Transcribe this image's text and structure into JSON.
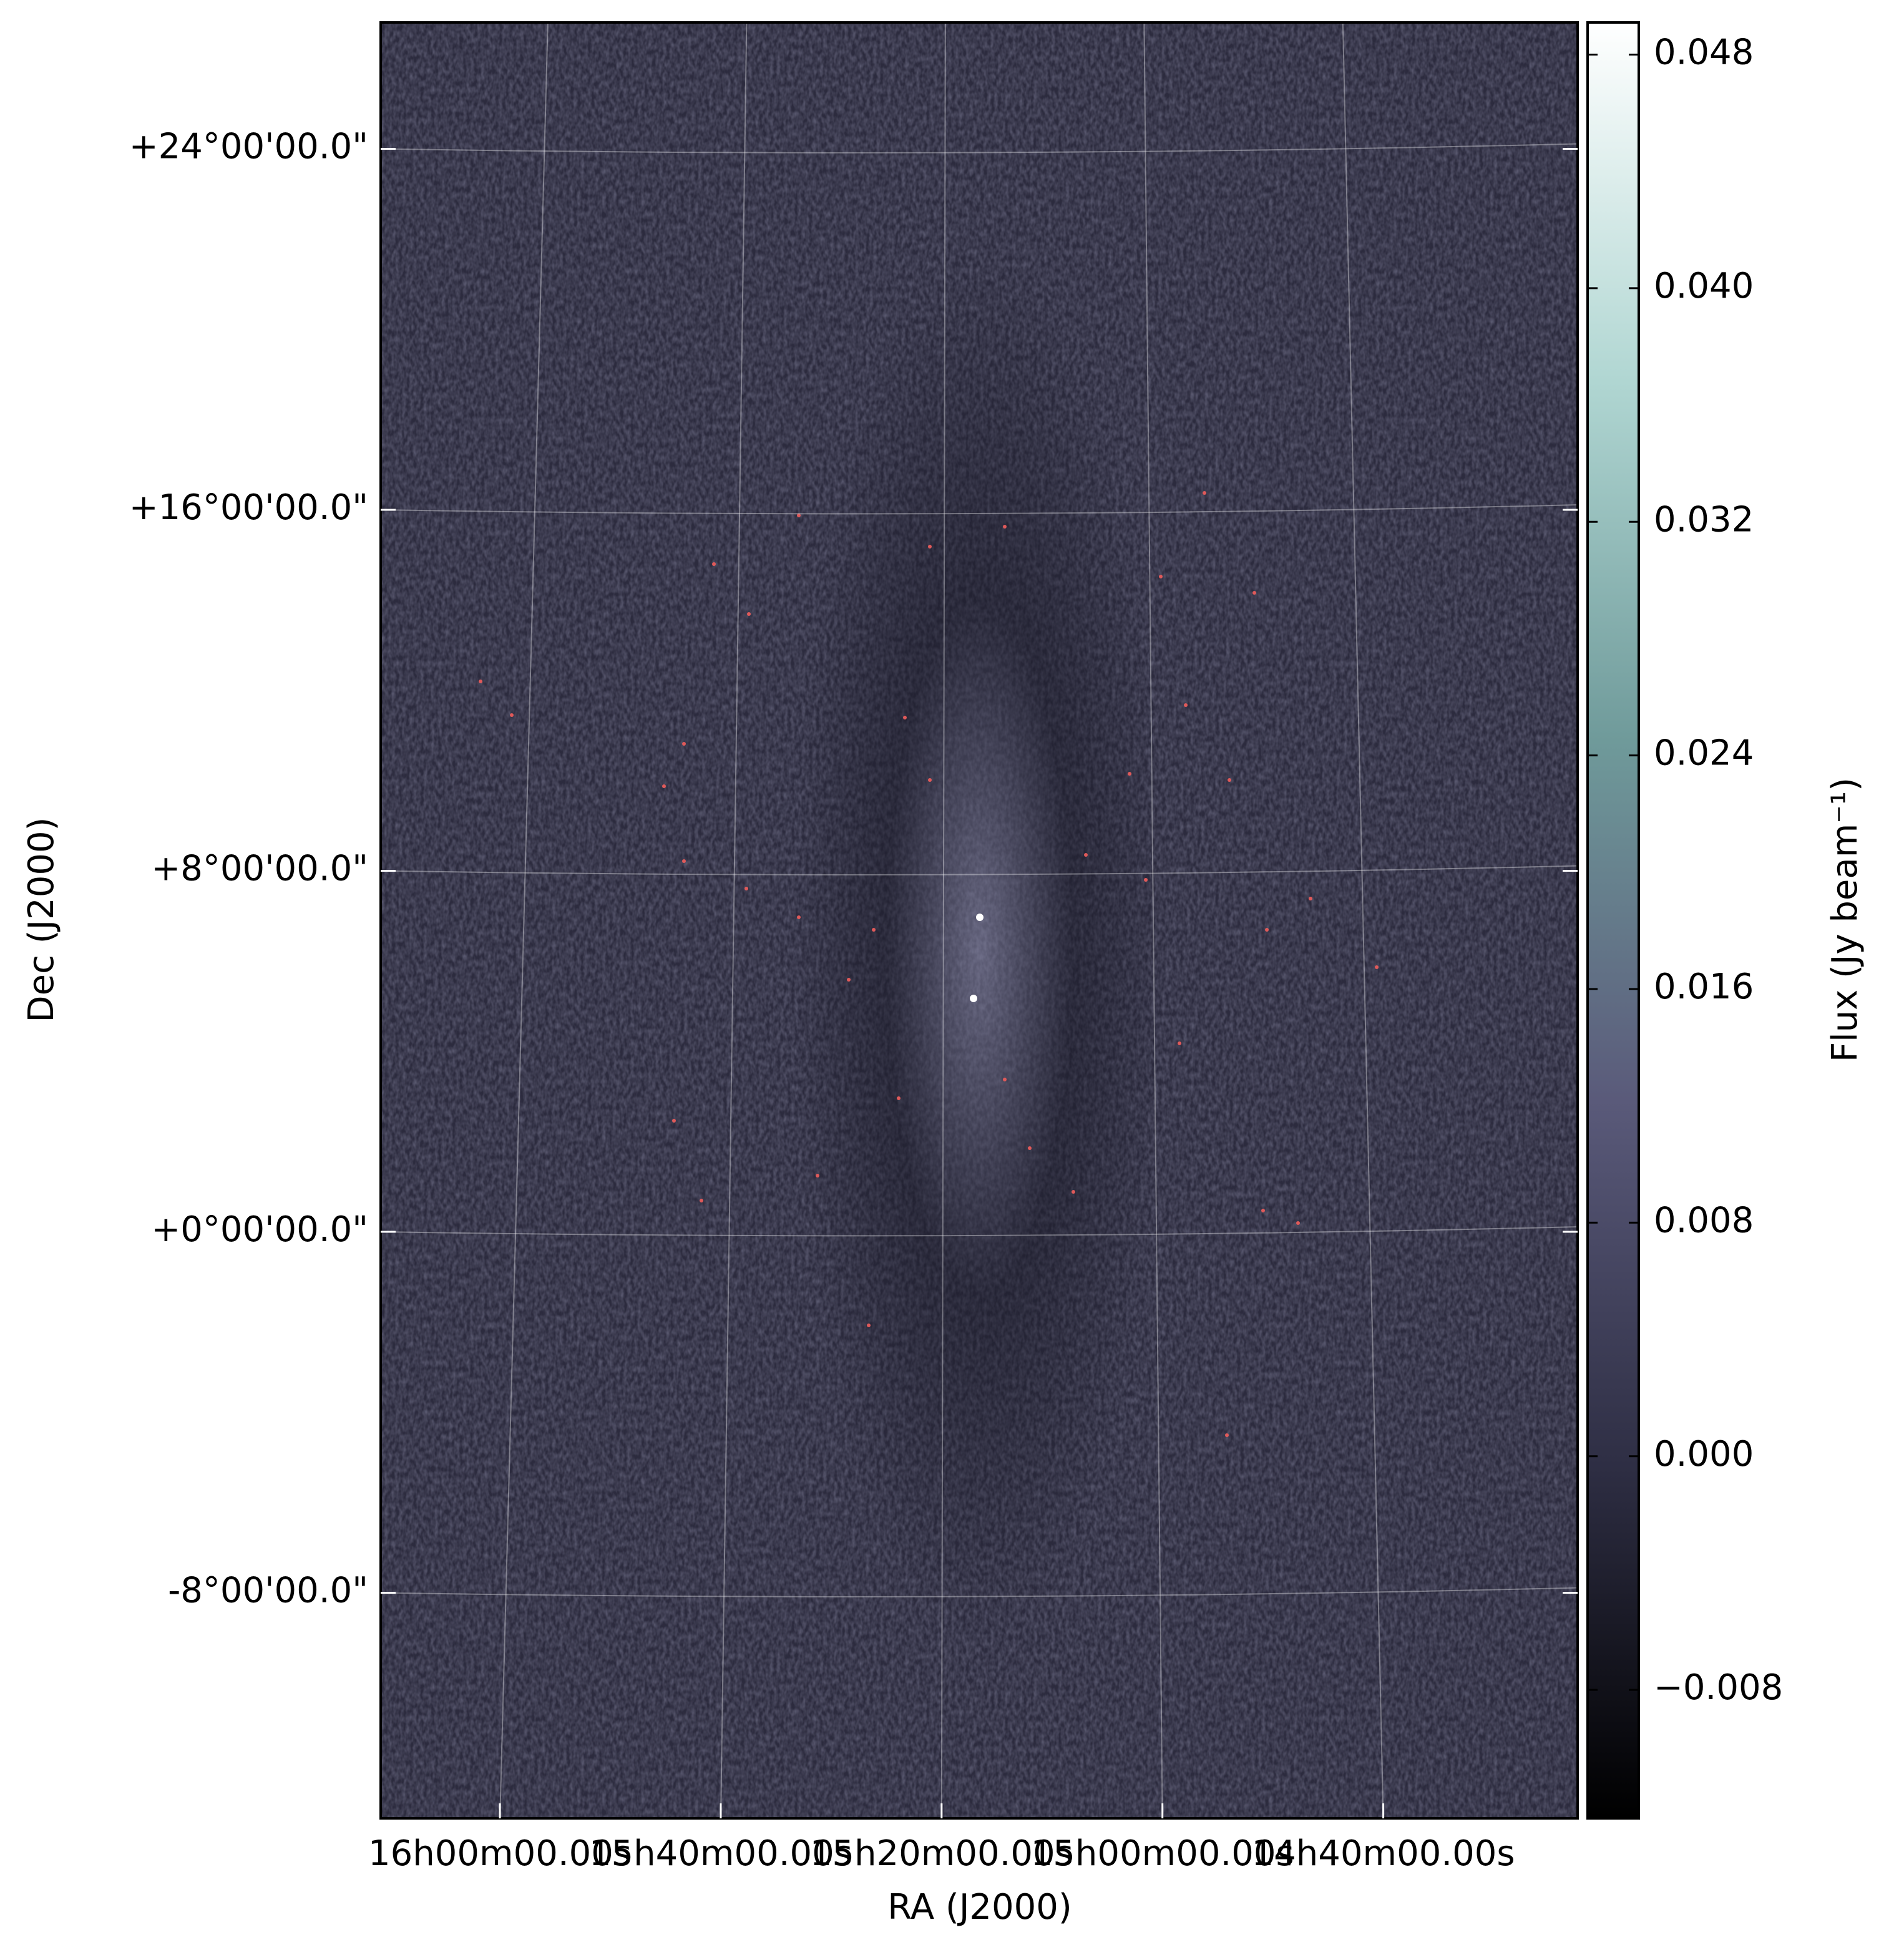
{
  "chart_data": {
    "type": "image",
    "xlabel": "RA (J2000)",
    "ylabel": "Dec (J2000)",
    "xlim": [
      242.7,
      215.6
    ],
    "xticks": [
      {
        "value": 240,
        "label": "16h00m00.00s"
      },
      {
        "value": 235,
        "label": "15h40m00.00s"
      },
      {
        "value": 230,
        "label": "15h20m00.00s"
      },
      {
        "value": 225,
        "label": "15h00m00.00s"
      },
      {
        "value": 220,
        "label": "14h40m00.00s"
      }
    ],
    "ylim": [
      -13.0,
      26.8
    ],
    "yticks": [
      {
        "value": 24,
        "label": "+24°00'00.0\""
      },
      {
        "value": 16,
        "label": "+16°00'00.0\""
      },
      {
        "value": 8,
        "label": "+8°00'00.0\""
      },
      {
        "value": 0,
        "label": "+0°00'00.0\""
      },
      {
        "value": -8,
        "label": "-8°00'00.0\""
      }
    ],
    "grid": true,
    "colorbar": {
      "label": "Flux (Jy beam⁻¹)",
      "clim": [
        -0.0124,
        0.0491
      ],
      "ticks": [
        {
          "value": -0.008,
          "label": "−0.008"
        },
        {
          "value": 0,
          "label": "0.000"
        },
        0.008,
        0.016,
        0.024,
        0.032,
        {
          "value": 0.04,
          "label": "0.040"
        },
        0.048
      ],
      "colormap": [
        "#000000",
        "#2f2f45",
        "#5a5a7a",
        "#6f9a9a",
        "#b0d6d2",
        "#ffffff"
      ]
    }
  }
}
